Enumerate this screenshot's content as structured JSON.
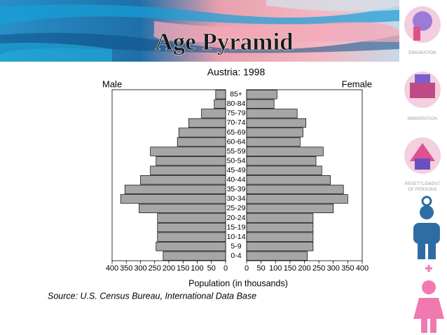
{
  "slide_title": "Age Pyramid",
  "sidebar": {
    "labels": [
      "EMIGRATION",
      "IMMIGRATION",
      "RESETTLEMENT OF PERSONS"
    ]
  },
  "chart_data": {
    "type": "pyramid",
    "title": "Austria: 1998",
    "categories": [
      "85+",
      "80-84",
      "75-79",
      "70-74",
      "65-69",
      "60-64",
      "55-59",
      "50-54",
      "45-49",
      "40-44",
      "35-39",
      "30-34",
      "25-29",
      "20-24",
      "15-19",
      "10-14",
      "5-9",
      "0-4"
    ],
    "series": [
      {
        "name": "Male",
        "color": "#a6a6a6",
        "values": [
          35,
          40,
          85,
          130,
          165,
          170,
          265,
          245,
          265,
          300,
          355,
          370,
          305,
          240,
          240,
          240,
          245,
          220
        ]
      },
      {
        "name": "Female",
        "color": "#a6a6a6",
        "values": [
          105,
          95,
          175,
          205,
          195,
          185,
          265,
          240,
          260,
          290,
          335,
          350,
          300,
          230,
          230,
          230,
          230,
          210
        ]
      }
    ],
    "xlim": [
      0,
      400
    ],
    "xticks": [
      0,
      50,
      100,
      150,
      200,
      250,
      300,
      350,
      400
    ],
    "xlabel": "Population (in thousands)",
    "source": "Source: U.S. Census Bureau, International Data Base"
  }
}
